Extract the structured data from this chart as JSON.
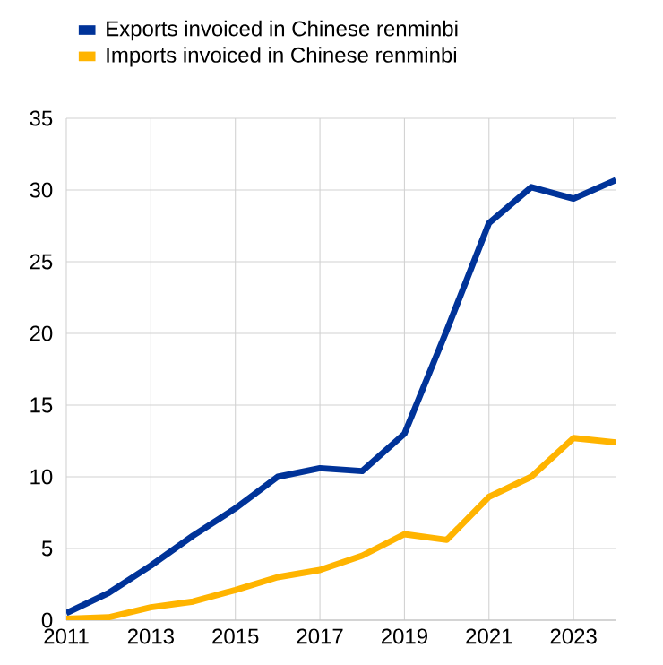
{
  "chart_data": {
    "type": "line",
    "x": [
      2011,
      2012,
      2013,
      2014,
      2015,
      2016,
      2017,
      2018,
      2019,
      2020,
      2021,
      2022,
      2023,
      2024
    ],
    "series": [
      {
        "name": "Exports invoiced in Chinese renminbi",
        "color": "#003399",
        "values": [
          0.5,
          1.9,
          3.8,
          5.9,
          7.8,
          10.0,
          10.6,
          10.4,
          13.0,
          20.2,
          27.7,
          30.2,
          29.4,
          30.7
        ]
      },
      {
        "name": "Imports invoiced in Chinese renminbi",
        "color": "#ffb400",
        "values": [
          0.1,
          0.2,
          0.9,
          1.3,
          2.1,
          3.0,
          3.5,
          4.5,
          6.0,
          5.6,
          8.6,
          10.0,
          12.7,
          12.4
        ]
      }
    ],
    "xlim": [
      2011,
      2024
    ],
    "xticks": [
      2011,
      2013,
      2015,
      2017,
      2019,
      2021,
      2023
    ],
    "ylim": [
      0,
      35
    ],
    "yticks": [
      0,
      5,
      10,
      15,
      20,
      25,
      30,
      35
    ],
    "grid": true,
    "legend": "top left",
    "marker": "none",
    "line_style": "solid"
  }
}
